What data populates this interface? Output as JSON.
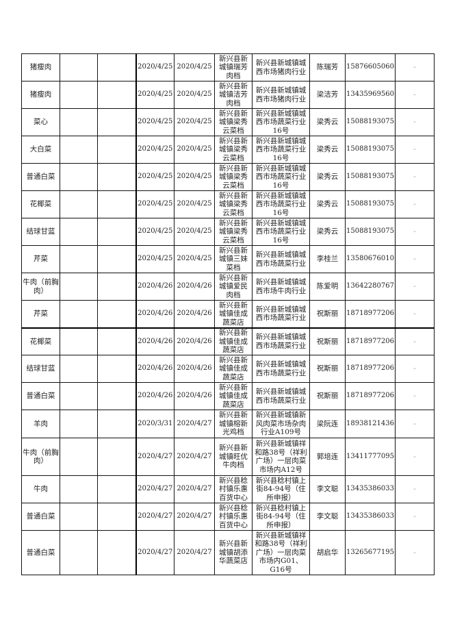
{
  "rows": [
    {
      "product": "猪瘦肉",
      "col2": "",
      "col3": "",
      "date1": "2020/4/25",
      "date2": "2020/4/25",
      "store": "新兴县新城镇瑞芳肉档",
      "address": "新兴县新城镇城西市场猪肉行业",
      "person": "陈瑞芳",
      "phone": "15876605060",
      "note": "-"
    },
    {
      "product": "猪瘦肉",
      "col2": "",
      "col3": "",
      "date1": "2020/4/25",
      "date2": "2020/4/25",
      "store": "新兴县新城镇洁芳肉档",
      "address": "新兴县新城镇城西市场猪肉行业",
      "person": "梁洁芳",
      "phone": "13435969560",
      "note": "-"
    },
    {
      "product": "菜心",
      "col2": "",
      "col3": "",
      "date1": "2020/4/25",
      "date2": "2020/4/25",
      "store": "新兴县新城镇梁秀云菜档",
      "address": "新兴县新城镇城西市场蔬菜行业16号",
      "person": "梁秀云",
      "phone": "15088193075",
      "note": "-"
    },
    {
      "product": "大白菜",
      "col2": "",
      "col3": "",
      "date1": "2020/4/25",
      "date2": "2020/4/25",
      "store": "新兴县新城镇梁秀云菜档",
      "address": "新兴县新城镇城西市场蔬菜行业16号",
      "person": "梁秀云",
      "phone": "15088193075",
      "note": "-"
    },
    {
      "product": "普通白菜",
      "col2": "",
      "col3": "",
      "date1": "2020/4/25",
      "date2": "2020/4/25",
      "store": "新兴县新城镇梁秀云菜档",
      "address": "新兴县新城镇城西市场蔬菜行业16号",
      "person": "梁秀云",
      "phone": "15088193075",
      "note": "-"
    },
    {
      "product": "花椰菜",
      "col2": "",
      "col3": "",
      "date1": "2020/4/25",
      "date2": "2020/4/25",
      "store": "新兴县新城镇梁秀云菜档",
      "address": "新兴县新城镇城西市场蔬菜行业16号",
      "person": "梁秀云",
      "phone": "15088193075",
      "note": "-"
    },
    {
      "product": "结球甘蓝",
      "col2": "",
      "col3": "",
      "date1": "2020/4/25",
      "date2": "2020/4/25",
      "store": "新兴县新城镇梁秀云菜档",
      "address": "新兴县新城镇城西市场蔬菜行业16号",
      "person": "梁秀云",
      "phone": "15088193075",
      "note": "-"
    },
    {
      "product": "芹菜",
      "col2": "",
      "col3": "",
      "date1": "2020/4/25",
      "date2": "2020/4/25",
      "store": "新兴县新城镇三妹菜档",
      "address": "新兴县新城镇城西市场蔬菜行业",
      "person": "李桂兰",
      "phone": "13580676010",
      "note": "-"
    },
    {
      "product": "牛肉（前胸肉）",
      "col2": "",
      "col3": "",
      "date1": "2020/4/26",
      "date2": "2020/4/26",
      "store": "新兴县新城镇爱民肉档",
      "address": "新兴县新城镇城西市场牛肉行业",
      "person": "陈爱明",
      "phone": "13642280767",
      "note": "-"
    },
    {
      "product": "芹菜",
      "col2": "",
      "col3": "",
      "date1": "2020/4/26",
      "date2": "2020/4/26",
      "store": "新兴县新城镇佳成蔬菜店",
      "address": "新兴县新城镇城西市场蔬菜行业",
      "person": "祝斯丽",
      "phone": "18718977206",
      "note": "-"
    },
    {
      "product": "花椰菜",
      "col2": "",
      "col3": "",
      "date1": "2020/4/26",
      "date2": "2020/4/26",
      "store": "新兴县新城镇佳成蔬菜店",
      "address": "新兴县新城镇城西市场蔬菜行业",
      "person": "祝斯丽",
      "phone": "18718977206",
      "note": "-"
    },
    {
      "product": "结球甘蓝",
      "col2": "",
      "col3": "",
      "date1": "2020/4/26",
      "date2": "2020/4/26",
      "store": "新兴县新城镇佳成蔬菜店",
      "address": "新兴县新城镇城西市场蔬菜行业",
      "person": "祝斯丽",
      "phone": "18718977206",
      "note": "-"
    },
    {
      "product": "普通白菜",
      "col2": "",
      "col3": "",
      "date1": "2020/4/26",
      "date2": "2020/4/26",
      "store": "新兴县新城镇佳成蔬菜店",
      "address": "新兴县新城镇城西市场蔬菜行业",
      "person": "祝斯丽",
      "phone": "18718977206",
      "note": "-"
    },
    {
      "product": "羊肉",
      "col2": "",
      "col3": "",
      "date1": "2020/3/31",
      "date2": "2020/4/27",
      "store": "新兴县新城镇榕新光鸡档",
      "address": "新兴县新城镇新风肉菜市场杂肉行业A109号",
      "person": "梁阮连",
      "phone": "18938121436",
      "note": "-"
    },
    {
      "product": "牛肉（前胸肉）",
      "col2": "",
      "col3": "",
      "date1": "2020/4/27",
      "date2": "2020/4/27",
      "store": "新兴县新城镇旺优牛肉档",
      "address": "新兴县新城镇祥和路38号（祥利广场）一层肉菜市场内A12号",
      "person": "郭培连",
      "phone": "13411777095",
      "note": "-"
    },
    {
      "product": "牛肉",
      "col2": "",
      "col3": "",
      "date1": "2020/4/27",
      "date2": "2020/4/27",
      "store": "新兴县稔村镇乐惠百货中心",
      "address": "新兴县稔村镇上街84-94号（住所申报）",
      "person": "李文聪",
      "phone": "13435386033",
      "note": "-"
    },
    {
      "product": "普通白菜",
      "col2": "",
      "col3": "",
      "date1": "2020/4/27",
      "date2": "2020/4/27",
      "store": "新兴县稔村镇乐惠百货中心",
      "address": "新兴县稔村镇上街84-94号（住所申报）",
      "person": "李文聪",
      "phone": "13435386033",
      "note": "-"
    },
    {
      "product": "普通白菜",
      "col2": "",
      "col3": "",
      "date1": "2020/4/27",
      "date2": "2020/4/27",
      "store": "新兴县新城镇胡添华蔬菜店",
      "address": "新兴县新城镇祥和路38号（祥利广场）一层肉菜市场内G01、G16号",
      "person": "胡启华",
      "phone": "13265677195",
      "note": "-"
    }
  ]
}
